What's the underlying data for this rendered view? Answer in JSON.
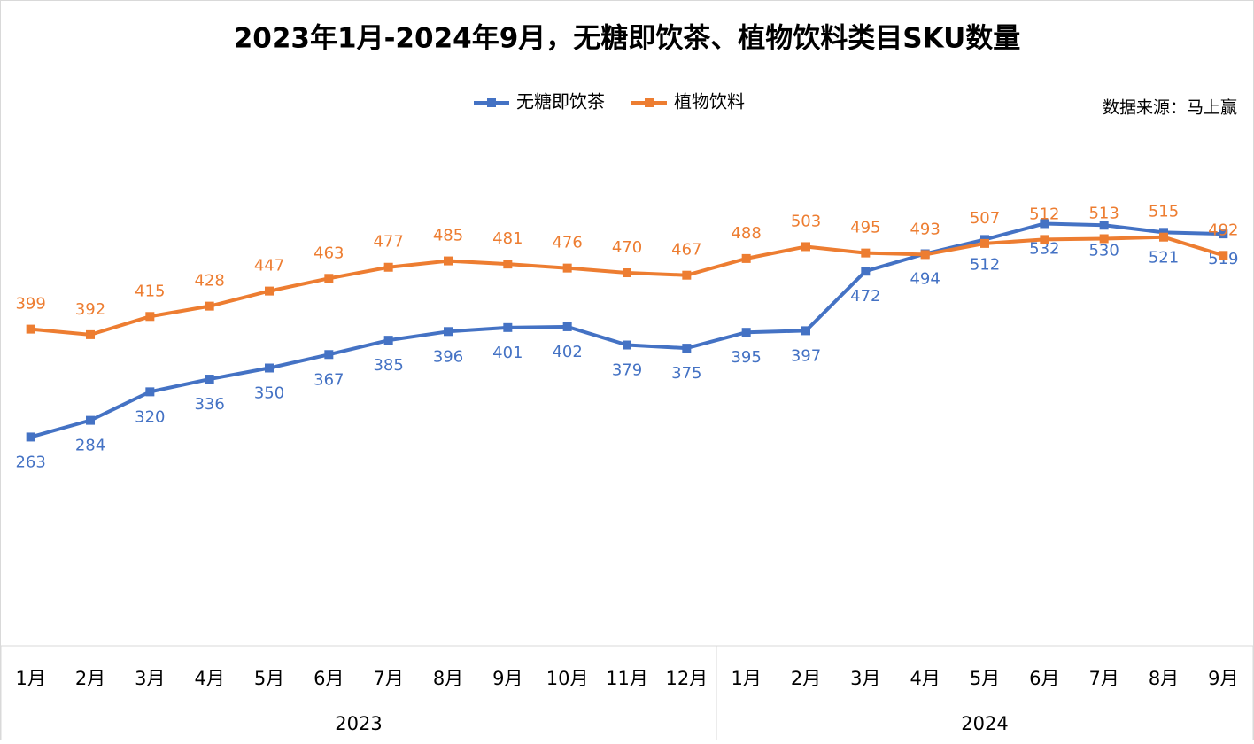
{
  "chart_data": {
    "type": "line",
    "title": "2023年1月-2024年9月，无糖即饮茶、植物饮料类目SKU数量",
    "source": "数据来源：马上赢",
    "category_groups": [
      {
        "name": "2023",
        "categories": [
          "1月",
          "2月",
          "3月",
          "4月",
          "5月",
          "6月",
          "7月",
          "8月",
          "9月",
          "10月",
          "11月",
          "12月"
        ]
      },
      {
        "name": "2024",
        "categories": [
          "1月",
          "2月",
          "3月",
          "4月",
          "5月",
          "6月",
          "7月",
          "8月",
          "9月"
        ]
      }
    ],
    "series": [
      {
        "name": "无糖即饮茶",
        "color": "#4472c4",
        "label_position": "below",
        "values": [
          263,
          284,
          320,
          336,
          350,
          367,
          385,
          396,
          401,
          402,
          379,
          375,
          395,
          397,
          472,
          494,
          512,
          532,
          530,
          521,
          519
        ]
      },
      {
        "name": "植物饮料",
        "color": "#ed7d31",
        "label_position": "above",
        "values": [
          399,
          392,
          415,
          428,
          447,
          463,
          477,
          485,
          481,
          476,
          470,
          467,
          488,
          503,
          495,
          493,
          507,
          512,
          513,
          515,
          492
        ]
      }
    ],
    "ylim": [
      0,
      700
    ]
  }
}
